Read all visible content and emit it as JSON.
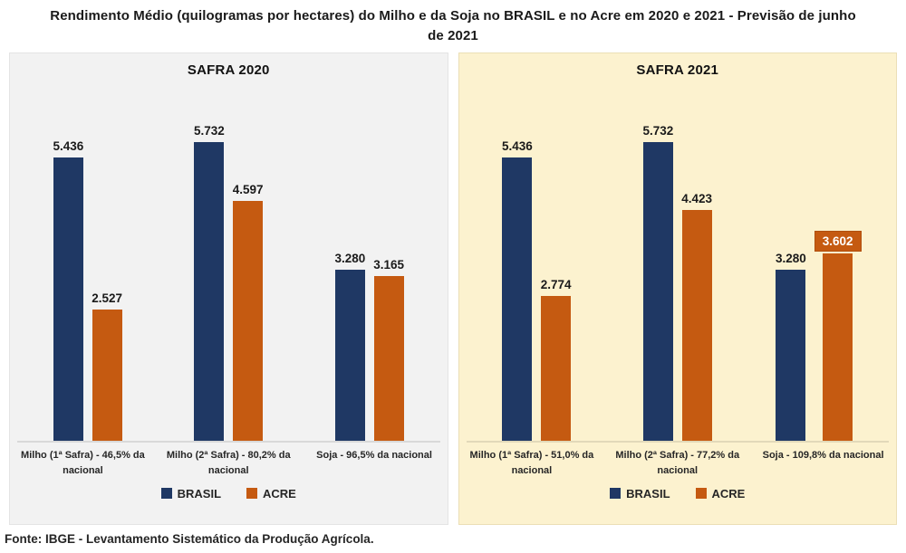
{
  "header": {
    "title_line1": "Rendimento Médio (quilogramas por hectares) do Milho e da Soja no BRASIL e no Acre em 2020 e 2021  - Previsão de junho",
    "title_line2": "de 2021"
  },
  "footer": {
    "source": "Fonte: IBGE - Levantamento Sistemático da Produção Agrícola."
  },
  "colors": {
    "brasil": "#1F3864",
    "acre": "#C55A11",
    "panel_2020_bg": "#F2F2F2",
    "panel_2021_bg": "#FCF2CF",
    "highlight_badge_bg": "#C55A11",
    "highlight_badge_text": "#FFFFFF"
  },
  "chart_data": [
    {
      "type": "bar",
      "title": "SAFRA 2020",
      "categories": [
        "Milho (1ª Safra) - 46,5% da nacional",
        "Milho (2ª Safra) - 80,2% da nacional",
        "Soja - 96,5% da nacional"
      ],
      "series": [
        {
          "name": "BRASIL",
          "color": "#1F3864",
          "values": [
            5436,
            5732,
            3280
          ],
          "labels": [
            "5.436",
            "5.732",
            "3.280"
          ]
        },
        {
          "name": "ACRE",
          "color": "#C55A11",
          "values": [
            2527,
            4597,
            3165
          ],
          "labels": [
            "2.527",
            "4.597",
            "3.165"
          ]
        }
      ],
      "ylim": [
        0,
        6000
      ],
      "grid": false,
      "axes": "hidden",
      "legend_position": "bottom",
      "highlight": null
    },
    {
      "type": "bar",
      "title": "SAFRA 2021",
      "categories": [
        "Milho (1ª Safra) -  51,0% da nacional",
        "Milho (2ª Safra) - 77,2% da nacional",
        "Soja - 109,8% da nacional"
      ],
      "series": [
        {
          "name": "BRASIL",
          "color": "#1F3864",
          "values": [
            5436,
            5732,
            3280
          ],
          "labels": [
            "5.436",
            "5.732",
            "3.280"
          ]
        },
        {
          "name": "ACRE",
          "color": "#C55A11",
          "values": [
            2774,
            4423,
            3602
          ],
          "labels": [
            "2.774",
            "4.423",
            "3.602"
          ]
        }
      ],
      "ylim": [
        0,
        6000
      ],
      "grid": false,
      "axes": "hidden",
      "legend_position": "bottom",
      "highlight": {
        "series_index": 1,
        "category_index": 2,
        "style": "orange-badge-white-text"
      }
    }
  ]
}
